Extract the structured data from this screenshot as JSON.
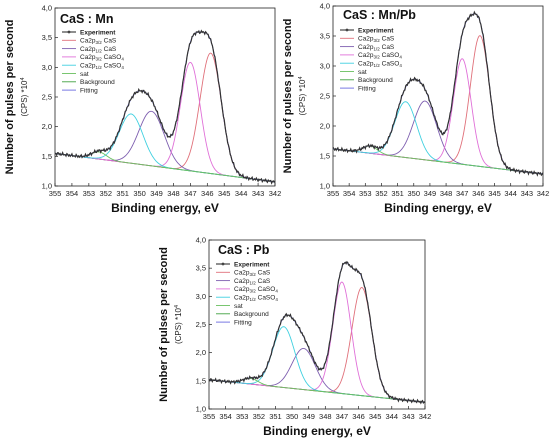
{
  "chart_data": [
    {
      "type": "line",
      "title": "CaS : Mn",
      "xlabel": "Binding energy, eV",
      "ylabel": "Number of pulses per second",
      "ylabel_unit": "(CPS) *10",
      "ylabel_unit_exp": "4",
      "xlim": [
        355,
        342
      ],
      "ylim": [
        1.0,
        4.0
      ],
      "x_ticks": [
        "355",
        "354",
        "353",
        "352",
        "351",
        "350",
        "349",
        "348",
        "347",
        "346",
        "345",
        "344",
        "343",
        "342"
      ],
      "y_ticks": [
        "1,0",
        "1,5",
        "2,0",
        "2,5",
        "3,0",
        "3,5",
        "4,0"
      ],
      "legend": [
        {
          "label": "Experiment",
          "sub": "",
          "suffix": "",
          "color": "#333333"
        },
        {
          "label": "Ca2p",
          "sub": "3/2",
          "suffix": " CaS",
          "color": "#e0707a"
        },
        {
          "label": "Ca2p",
          "sub": "1/2",
          "suffix": " CaS",
          "color": "#7e5fb0"
        },
        {
          "label": "Ca2p",
          "sub": "3/2",
          "suffix": " CaSO",
          "suffix_sub": "4",
          "color": "#e070d8"
        },
        {
          "label": "Ca2p",
          "sub": "1/2",
          "suffix": " CaSO",
          "suffix_sub": "4",
          "color": "#40d0e0"
        },
        {
          "label": "sat",
          "sub": "",
          "suffix": "",
          "color": "#6ac060"
        },
        {
          "label": "Background",
          "sub": "",
          "suffix": "",
          "color": "#40a040"
        },
        {
          "label": "Fitting",
          "sub": "",
          "suffix": "",
          "color": "#6a6ae0"
        }
      ],
      "background": {
        "x": [
          355.0,
          342.0
        ],
        "y": [
          1.55,
          1.07
        ]
      },
      "components": [
        {
          "name": "Ca2p3/2 CaS",
          "center": 345.8,
          "amplitude": 2.03,
          "sigma": 0.63
        },
        {
          "name": "Ca2p1/2 CaS",
          "center": 349.3,
          "amplitude": 0.92,
          "sigma": 0.75
        },
        {
          "name": "Ca2p3/2 CaSO4",
          "center": 347.0,
          "amplitude": 1.83,
          "sigma": 0.58
        },
        {
          "name": "Ca2p1/2 CaSO4",
          "center": 350.5,
          "amplitude": 0.83,
          "sigma": 0.7
        },
        {
          "name": "sat",
          "center": 352.4,
          "amplitude": 0.12,
          "sigma": 0.45
        }
      ]
    },
    {
      "type": "line",
      "title": "CaS : Mn/Pb",
      "xlabel": "Binding energy, eV",
      "ylabel": "Number of pulses per second",
      "ylabel_unit": "(CPS) *10",
      "ylabel_unit_exp": "4",
      "xlim": [
        355,
        342
      ],
      "ylim": [
        1.0,
        4.0
      ],
      "x_ticks": [
        "355",
        "354",
        "353",
        "352",
        "351",
        "350",
        "349",
        "348",
        "347",
        "346",
        "345",
        "344",
        "343",
        "342"
      ],
      "y_ticks": [
        "1,0",
        "1,5",
        "2,0",
        "2,5",
        "3,0",
        "3,5",
        "4,0"
      ],
      "legend": [
        {
          "label": "Experiment",
          "sub": "",
          "suffix": "",
          "color": "#333333"
        },
        {
          "label": "Ca2p",
          "sub": "3/2",
          "suffix": " CaS",
          "color": "#e0707a"
        },
        {
          "label": "Ca2p",
          "sub": "1/2",
          "suffix": " CaS",
          "color": "#7e5fb0"
        },
        {
          "label": "Ca2p",
          "sub": "3/2",
          "suffix": " CaSO",
          "suffix_sub": "4",
          "color": "#e070d8"
        },
        {
          "label": "Ca2p",
          "sub": "1/2",
          "suffix": " CaSO",
          "suffix_sub": "4",
          "color": "#40d0e0"
        },
        {
          "label": "sat",
          "sub": "",
          "suffix": "",
          "color": "#6ac060"
        },
        {
          "label": "Background",
          "sub": "",
          "suffix": "",
          "color": "#40a040"
        },
        {
          "label": "Fitting",
          "sub": "",
          "suffix": "",
          "color": "#6a6ae0"
        }
      ],
      "background": {
        "x": [
          355.0,
          342.0
        ],
        "y": [
          1.62,
          1.2
        ]
      },
      "components": [
        {
          "name": "Ca2p3/2 CaS",
          "center": 345.9,
          "amplitude": 2.18,
          "sigma": 0.6
        },
        {
          "name": "Ca2p1/2 CaS",
          "center": 349.3,
          "amplitude": 0.98,
          "sigma": 0.72
        },
        {
          "name": "Ca2p3/2 CaSO4",
          "center": 347.0,
          "amplitude": 1.76,
          "sigma": 0.55
        },
        {
          "name": "Ca2p1/2 CaSO4",
          "center": 350.5,
          "amplitude": 0.93,
          "sigma": 0.68
        },
        {
          "name": "sat",
          "center": 352.7,
          "amplitude": 0.12,
          "sigma": 0.45
        }
      ]
    },
    {
      "type": "line",
      "title": "CaS : Pb",
      "xlabel": "Binding energy, eV",
      "ylabel": "Number of pulses per second",
      "ylabel_unit": "(CPS) *10",
      "ylabel_unit_exp": "4",
      "xlim": [
        355,
        342
      ],
      "ylim": [
        1.0,
        4.0
      ],
      "x_ticks": [
        "355",
        "354",
        "353",
        "352",
        "351",
        "350",
        "349",
        "348",
        "347",
        "346",
        "345",
        "344",
        "343",
        "342"
      ],
      "y_ticks": [
        "1,0",
        "1,5",
        "2,0",
        "2,5",
        "3,0",
        "3,5",
        "4,0"
      ],
      "legend": [
        {
          "label": "Experiment",
          "sub": "",
          "suffix": "",
          "color": "#333333"
        },
        {
          "label": "Ca2p",
          "sub": "3/2",
          "suffix": " CaS",
          "color": "#e0707a"
        },
        {
          "label": "Ca2p",
          "sub": "1/2",
          "suffix": " CaS",
          "color": "#7e5fb0"
        },
        {
          "label": "Ca2p",
          "sub": "3/2",
          "suffix": " CaSO",
          "suffix_sub": "4",
          "color": "#e070d8"
        },
        {
          "label": "Ca2p",
          "sub": "1/2",
          "suffix": " CaSO",
          "suffix_sub": "4",
          "color": "#40d0e0"
        },
        {
          "label": "sat",
          "sub": "",
          "suffix": "",
          "color": "#6ac060"
        },
        {
          "label": "Background",
          "sub": "",
          "suffix": "",
          "color": "#40a040"
        },
        {
          "label": "Fitting",
          "sub": "",
          "suffix": "",
          "color": "#6a6ae0"
        }
      ],
      "background": {
        "x": [
          355.0,
          342.0
        ],
        "y": [
          1.52,
          1.12
        ]
      },
      "components": [
        {
          "name": "Ca2p3/2 CaS",
          "center": 345.8,
          "amplitude": 1.92,
          "sigma": 0.6
        },
        {
          "name": "Ca2p1/2 CaS",
          "center": 349.3,
          "amplitude": 0.73,
          "sigma": 0.7
        },
        {
          "name": "Ca2p3/2 CaSO4",
          "center": 347.0,
          "amplitude": 1.98,
          "sigma": 0.55
        },
        {
          "name": "Ca2p1/2 CaSO4",
          "center": 350.5,
          "amplitude": 1.08,
          "sigma": 0.66
        },
        {
          "name": "sat",
          "center": 352.5,
          "amplitude": 0.1,
          "sigma": 0.45
        }
      ]
    }
  ]
}
